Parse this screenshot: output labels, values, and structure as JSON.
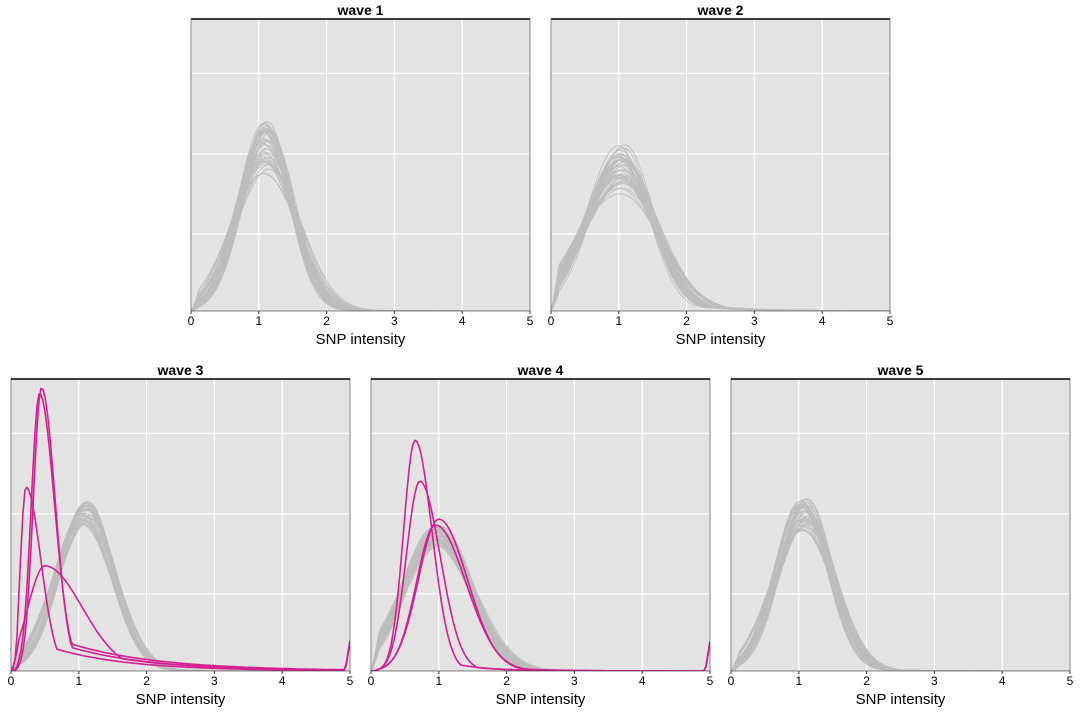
{
  "figure": {
    "background": "#ffffff",
    "panel_background": "#e3e3e3",
    "grid_color": "#ffffff"
  },
  "chart_data": [
    {
      "type": "line",
      "title": "wave 1",
      "xlabel": "SNP intensity",
      "ylabel": "",
      "xlim": [
        0,
        5
      ],
      "ylim": [
        0,
        1
      ],
      "x_ticks": [
        "0",
        "1",
        "2",
        "3",
        "4",
        "5"
      ],
      "y_ticks_shown": false,
      "grid": true,
      "curve_family": {
        "count": 40,
        "color": "#bdbdbd",
        "peak_x": 1.1,
        "peak_height_range": [
          0.47,
          0.65
        ]
      },
      "highlighted_series": []
    },
    {
      "type": "line",
      "title": "wave 2",
      "xlabel": "SNP intensity",
      "ylabel": "",
      "xlim": [
        0,
        5
      ],
      "ylim": [
        0,
        1
      ],
      "x_ticks": [
        "0",
        "1",
        "2",
        "3",
        "4",
        "5"
      ],
      "y_ticks_shown": false,
      "grid": true,
      "curve_family": {
        "count": 40,
        "color": "#bdbdbd",
        "peak_x": 1.05,
        "peak_height_range": [
          0.4,
          0.57
        ]
      },
      "highlighted_series": []
    },
    {
      "type": "line",
      "title": "wave 3",
      "xlabel": "SNP intensity",
      "ylabel": "",
      "xlim": [
        0,
        5
      ],
      "ylim": [
        0,
        1
      ],
      "x_ticks": [
        "0",
        "1",
        "2",
        "3",
        "4",
        "5"
      ],
      "y_ticks_shown": false,
      "grid": true,
      "curve_family": {
        "count": 40,
        "color": "#bdbdbd",
        "peak_x": 1.1,
        "peak_height_range": [
          0.5,
          0.58
        ]
      },
      "highlighted_series": [
        {
          "color": "#d42090",
          "peak_x": 0.45,
          "peak_y": 0.97
        },
        {
          "color": "#d42090",
          "peak_x": 0.42,
          "peak_y": 0.95
        },
        {
          "color": "#d42090",
          "peak_x": 0.22,
          "peak_y": 0.63
        },
        {
          "color": "#d42090",
          "peak_x": 0.5,
          "peak_y": 0.36
        }
      ]
    },
    {
      "type": "line",
      "title": "wave 4",
      "xlabel": "SNP intensity",
      "ylabel": "",
      "xlim": [
        0,
        5
      ],
      "ylim": [
        0,
        1
      ],
      "x_ticks": [
        "0",
        "1",
        "2",
        "3",
        "4",
        "5"
      ],
      "y_ticks_shown": false,
      "grid": true,
      "curve_family": {
        "count": 40,
        "color": "#bdbdbd",
        "peak_x": 0.98,
        "peak_height_range": [
          0.43,
          0.5
        ]
      },
      "highlighted_series": [
        {
          "color": "#d42090",
          "peak_x": 0.65,
          "peak_y": 0.79
        },
        {
          "color": "#d42090",
          "peak_x": 0.72,
          "peak_y": 0.65
        },
        {
          "color": "#d42090",
          "peak_x": 1.0,
          "peak_y": 0.52
        },
        {
          "color": "#d42090",
          "peak_x": 0.95,
          "peak_y": 0.5
        }
      ]
    },
    {
      "type": "line",
      "title": "wave 5",
      "xlabel": "SNP intensity",
      "ylabel": "",
      "xlim": [
        0,
        5
      ],
      "ylim": [
        0,
        1
      ],
      "x_ticks": [
        "0",
        "1",
        "2",
        "3",
        "4",
        "5"
      ],
      "y_ticks_shown": false,
      "grid": true,
      "curve_family": {
        "count": 40,
        "color": "#bdbdbd",
        "peak_x": 1.08,
        "peak_height_range": [
          0.48,
          0.59
        ]
      },
      "highlighted_series": []
    }
  ]
}
